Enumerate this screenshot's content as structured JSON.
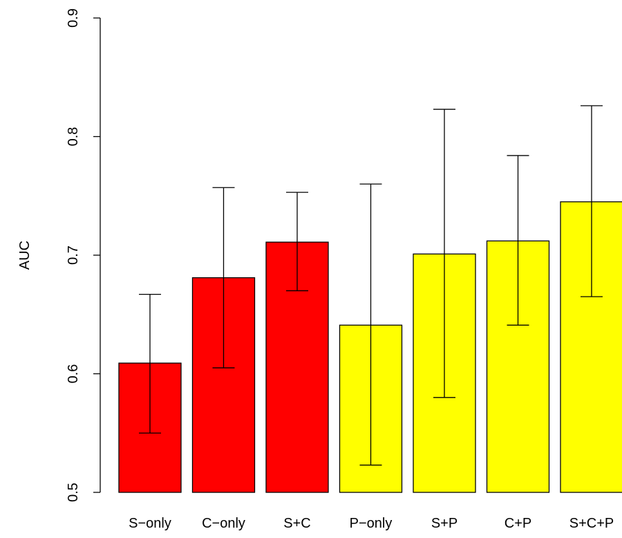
{
  "chart_data": {
    "type": "bar",
    "categories": [
      "S−only",
      "C−only",
      "S+C",
      "P−only",
      "S+P",
      "C+P",
      "S+C+P"
    ],
    "values": [
      0.609,
      0.681,
      0.711,
      0.641,
      0.701,
      0.712,
      0.745
    ],
    "error_low": [
      0.55,
      0.605,
      0.67,
      0.523,
      0.58,
      0.641,
      0.665
    ],
    "error_high": [
      0.667,
      0.757,
      0.753,
      0.76,
      0.823,
      0.784,
      0.826
    ],
    "bar_colors": [
      "#ff0000",
      "#ff0000",
      "#ff0000",
      "#ffff00",
      "#ffff00",
      "#ffff00",
      "#ffff00"
    ],
    "ylabel": "AUC",
    "ylim": [
      0.5,
      0.9
    ],
    "yticks": [
      "0.5",
      "0.6",
      "0.7",
      "0.8",
      "0.9"
    ],
    "grid": false,
    "legend": "none"
  }
}
